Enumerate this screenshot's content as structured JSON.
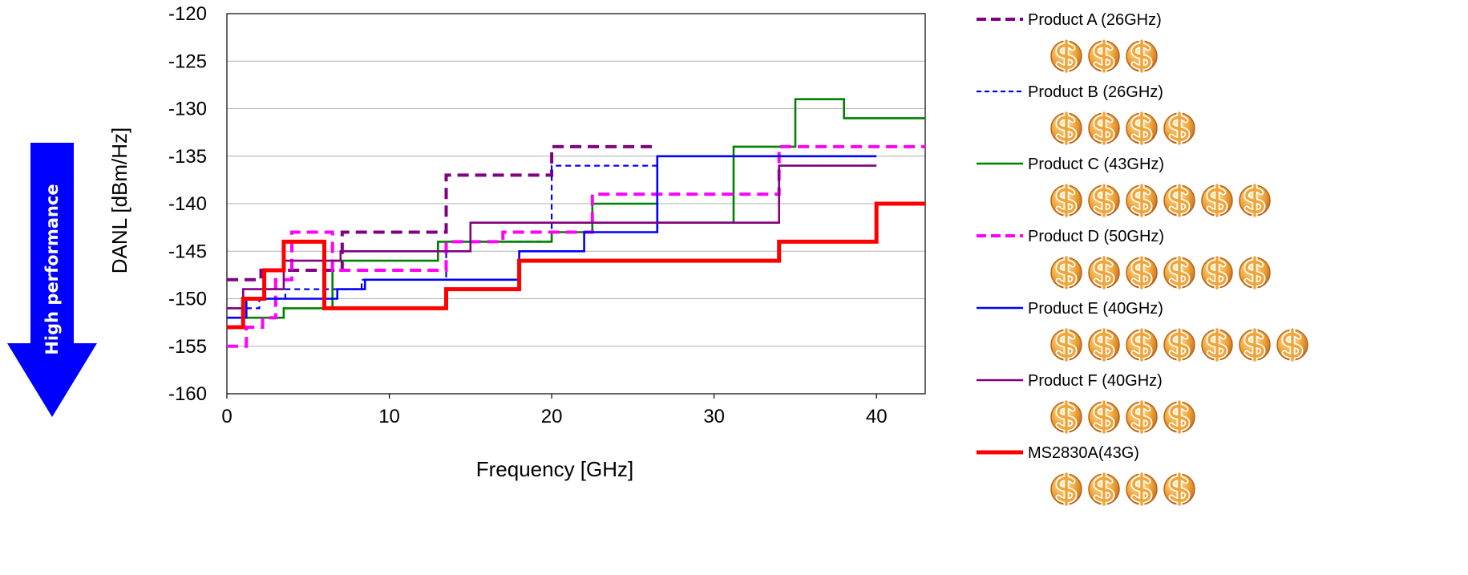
{
  "chart_data": {
    "type": "line",
    "line_shape": "step",
    "xlabel": "Frequency [GHz]",
    "ylabel": "DANL [dBm/Hz]",
    "xlim": [
      0,
      43
    ],
    "ylim": [
      -160,
      -120
    ],
    "xticks": [
      "0",
      "10",
      "20",
      "30",
      "40"
    ],
    "yticks": [
      "-120",
      "-125",
      "-130",
      "-135",
      "-140",
      "-145",
      "-150",
      "-155",
      "-160"
    ],
    "grid": "horizontal",
    "legend_position": "right",
    "performance_arrow_label": "High performance",
    "series": [
      {
        "name": "Product A (26GHz)",
        "color": "#800080",
        "style": "dashed-thick",
        "price_marks": 3,
        "x": [
          0,
          0.9,
          0.9,
          2.1,
          2.1,
          3.5,
          3.5,
          7.1,
          7.1,
          13.5,
          13.5,
          20,
          20,
          26.5
        ],
        "y": [
          -148,
          -148,
          -148,
          -148,
          -147,
          -147,
          -147,
          -147,
          -143,
          -143,
          -137,
          -137,
          -134,
          -134
        ]
      },
      {
        "name": "Product B (26GHz)",
        "color": "#0000ff",
        "style": "dashed-thin",
        "price_marks": 4,
        "x": [
          0,
          2,
          2,
          3.6,
          3.6,
          8.3,
          8.3,
          13.5,
          13.5,
          20,
          20,
          26.5
        ],
        "y": [
          -151,
          -151,
          -150,
          -150,
          -149,
          -149,
          -148,
          -148,
          -144,
          -144,
          -136,
          -136
        ]
      },
      {
        "name": "Product C (43GHz)",
        "color": "#008000",
        "style": "solid",
        "price_marks": 6,
        "x": [
          0,
          1,
          1,
          3.5,
          3.5,
          6.5,
          6.5,
          13,
          13,
          20,
          20,
          22.5,
          22.5,
          26.5,
          26.5,
          31.2,
          31.2,
          35,
          35,
          38,
          38,
          43
        ],
        "y": [
          -153,
          -153,
          -152,
          -152,
          -151,
          -151,
          -146,
          -146,
          -144,
          -144,
          -143,
          -143,
          -140,
          -140,
          -142,
          -142,
          -134,
          -134,
          -129,
          -129,
          -131,
          -131
        ]
      },
      {
        "name": "Product D (50GHz)",
        "color": "#ff00ff",
        "style": "dashed-thick",
        "price_marks": 6,
        "x": [
          0,
          1.2,
          1.2,
          2.2,
          2.2,
          3,
          3,
          4,
          4,
          6.5,
          6.5,
          13.5,
          13.5,
          17,
          17,
          22.5,
          22.5,
          34,
          34,
          43
        ],
        "y": [
          -155,
          -155,
          -153,
          -153,
          -152,
          -152,
          -148,
          -148,
          -143,
          -143,
          -147,
          -147,
          -144,
          -144,
          -143,
          -143,
          -139,
          -139,
          -134,
          -134
        ]
      },
      {
        "name": "Product E (40GHz)",
        "color": "#0000ff",
        "style": "solid",
        "price_marks": 7,
        "x": [
          0,
          1.2,
          1.2,
          6.8,
          6.8,
          8.5,
          8.5,
          18,
          18,
          22,
          22,
          26.5,
          26.5,
          34,
          34,
          40
        ],
        "y": [
          -152,
          -152,
          -150,
          -150,
          -149,
          -149,
          -148,
          -148,
          -145,
          -145,
          -143,
          -143,
          -135,
          -135,
          -135,
          -135
        ]
      },
      {
        "name": "Product F (40GHz)",
        "color": "#800080",
        "style": "solid",
        "price_marks": 4,
        "x": [
          0,
          1,
          1,
          3.5,
          3.5,
          7,
          7,
          15,
          15,
          34,
          34,
          40
        ],
        "y": [
          -151,
          -151,
          -149,
          -149,
          -146,
          -146,
          -145,
          -145,
          -142,
          -142,
          -136,
          -136
        ]
      },
      {
        "name": "MS2830A(43G)",
        "color": "#ff0000",
        "style": "solid-thick",
        "price_marks": 4,
        "x": [
          0,
          1,
          1,
          2.3,
          2.3,
          3.5,
          3.5,
          6,
          6,
          13.5,
          13.5,
          18,
          18,
          34,
          34,
          40,
          40,
          43
        ],
        "y": [
          -153,
          -153,
          -150,
          -150,
          -147,
          -147,
          -144,
          -144,
          -151,
          -151,
          -149,
          -149,
          -146,
          -146,
          -144,
          -144,
          -140,
          -140
        ]
      }
    ]
  },
  "colors": {
    "arrow": "#0000ff",
    "grid": "#b0b0b0",
    "coin_fill": "#f1a437",
    "coin_stroke": "#b8641a"
  },
  "icons": {
    "price_mark": "dollar-sign-icon",
    "arrow": "down-arrow-icon"
  }
}
